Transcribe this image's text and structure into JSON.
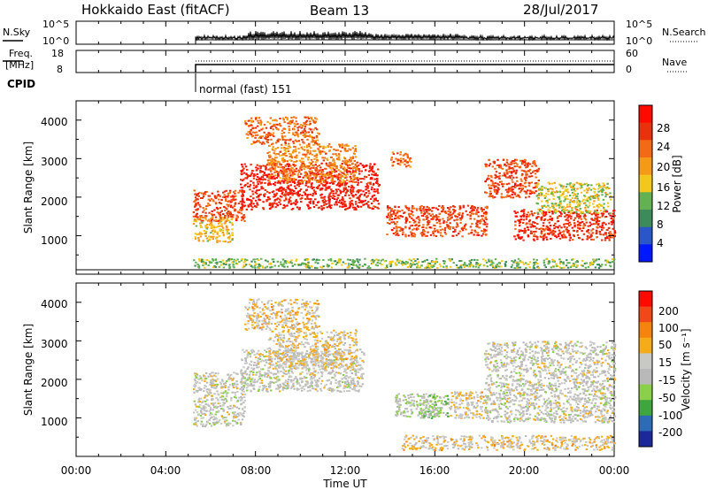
{
  "header": {
    "station": "Hokkaido East (fitACF)",
    "beam": "Beam 13",
    "date": "28/Jul/2017"
  },
  "noise_panel": {
    "left_label": "N.Sky",
    "right_label": "N.Search",
    "left_ticks": [
      "10^5",
      "10^0"
    ],
    "right_ticks": [
      "10^5",
      "10^0"
    ]
  },
  "freq_panel": {
    "left_label_1": "Freq.",
    "left_label_2": "[MHz]",
    "left_ticks": [
      "18",
      "8"
    ],
    "right_ticks": [
      "60",
      "0"
    ],
    "right_label": "Nave"
  },
  "cpid": {
    "label": "CPID",
    "mode": "normal (fast) 151"
  },
  "time_axis": {
    "ticks": [
      "00:00",
      "04:00",
      "08:00",
      "12:00",
      "16:00",
      "20:00",
      "00:00"
    ],
    "label": "Time UT"
  },
  "colors": {
    "power_scale": [
      "#0018ff",
      "#2a56c8",
      "#3d8a5a",
      "#63b152",
      "#f2c81f",
      "#f59a18",
      "#f26a16",
      "#e8320e",
      "#ff0a00"
    ],
    "velocity_scale": [
      "#ff0a00",
      "#f04818",
      "#f5840f",
      "#f5ac1b",
      "#c8c8c4",
      "#b9b9b9",
      "#8bd04a",
      "#3fa53f",
      "#2d6bb5",
      "#1b2a98"
    ]
  },
  "chart_data": [
    {
      "type": "heatmap",
      "ylabel": "Slant Range [km]",
      "xlabel": "",
      "x_range_hours": [
        0,
        24
      ],
      "ylim": [
        0,
        4500
      ],
      "y_ticks": [
        "1000",
        "2000",
        "3000",
        "4000"
      ],
      "colorbar": {
        "label": "Power [dB]",
        "ticks": [
          "4",
          "8",
          "12",
          "16",
          "20",
          "24",
          "28"
        ],
        "range": [
          0,
          30
        ]
      },
      "scatter_regions": [
        {
          "t0": 5.2,
          "t1": 7.5,
          "r0": 1400,
          "r1": 2200,
          "value": 24
        },
        {
          "t0": 5.2,
          "t1": 7.0,
          "r0": 850,
          "r1": 1500,
          "value": 16
        },
        {
          "t0": 7.3,
          "t1": 13.5,
          "r0": 1700,
          "r1": 2900,
          "value": 27
        },
        {
          "t0": 7.5,
          "t1": 10.8,
          "r0": 3400,
          "r1": 4100,
          "value": 22
        },
        {
          "t0": 8.5,
          "t1": 12.5,
          "r0": 2400,
          "r1": 3400,
          "value": 20
        },
        {
          "t0": 13.8,
          "t1": 18.3,
          "r0": 1000,
          "r1": 1800,
          "value": 24
        },
        {
          "t0": 18.2,
          "t1": 20.6,
          "r0": 2000,
          "r1": 3000,
          "value": 24
        },
        {
          "t0": 19.5,
          "t1": 24.0,
          "r0": 900,
          "r1": 1700,
          "value": 26
        },
        {
          "t0": 20.5,
          "t1": 23.8,
          "r0": 1600,
          "r1": 2400,
          "value": 14
        },
        {
          "t0": 14.0,
          "t1": 14.9,
          "r0": 2800,
          "r1": 3200,
          "value": 22
        },
        {
          "t0": 5.2,
          "t1": 24.0,
          "r0": 180,
          "r1": 420,
          "value": 12
        }
      ]
    },
    {
      "type": "heatmap",
      "ylabel": "Slant Range [km]",
      "xlabel": "Time UT",
      "x_range_hours": [
        0,
        24
      ],
      "ylim": [
        0,
        4500
      ],
      "y_ticks": [
        "1000",
        "2000",
        "3000",
        "4000"
      ],
      "colorbar": {
        "label": "Velocity [m s⁻¹]",
        "ticks": [
          "200",
          "100",
          "50",
          "15",
          "-15",
          "-50",
          "-100",
          "-200"
        ],
        "range": [
          -250,
          250
        ]
      },
      "scatter_regions": [
        {
          "t0": 5.2,
          "t1": 7.5,
          "r0": 800,
          "r1": 2200,
          "value": 0
        },
        {
          "t0": 7.3,
          "t1": 12.8,
          "r0": 1700,
          "r1": 2800,
          "value": 0
        },
        {
          "t0": 7.5,
          "t1": 10.8,
          "r0": 3300,
          "r1": 4100,
          "value": -45
        },
        {
          "t0": 8.5,
          "t1": 12.5,
          "r0": 2300,
          "r1": 3300,
          "value": -40
        },
        {
          "t0": 14.2,
          "t1": 16.0,
          "r0": 1050,
          "r1": 1650,
          "value": 35
        },
        {
          "t0": 15.3,
          "t1": 16.6,
          "r0": 1000,
          "r1": 1600,
          "value": 70
        },
        {
          "t0": 16.6,
          "t1": 18.3,
          "r0": 1000,
          "r1": 1700,
          "value": -40
        },
        {
          "t0": 18.2,
          "t1": 24.0,
          "r0": 900,
          "r1": 3000,
          "value": 0
        },
        {
          "t0": 14.5,
          "t1": 24.0,
          "r0": 180,
          "r1": 560,
          "value": -45
        }
      ]
    }
  ]
}
